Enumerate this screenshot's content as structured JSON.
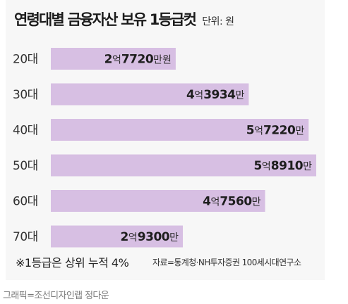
{
  "header": {
    "title": "연령대별 금융자산 보유 1등급컷",
    "unit": "단위: 원"
  },
  "chart_data": {
    "type": "bar",
    "orientation": "horizontal",
    "title": "연령대별 금융자산 보유 1등급컷",
    "categories": [
      "20대",
      "30대",
      "40대",
      "50대",
      "60대",
      "70대"
    ],
    "values": [
      277200000,
      439340000,
      572200000,
      589100000,
      475600000,
      293000000
    ],
    "value_labels": [
      {
        "eok": "2",
        "eok_unit": "억",
        "man": "7720",
        "man_unit": "만원"
      },
      {
        "eok": "4",
        "eok_unit": "억",
        "man": "3934",
        "man_unit": "만"
      },
      {
        "eok": "5",
        "eok_unit": "억",
        "man": "7220",
        "man_unit": "만"
      },
      {
        "eok": "5",
        "eok_unit": "억",
        "man": "8910",
        "man_unit": "만"
      },
      {
        "eok": "4",
        "eok_unit": "억",
        "man": "7560",
        "man_unit": "만"
      },
      {
        "eok": "2",
        "eok_unit": "억",
        "man": "9300",
        "man_unit": "만"
      }
    ],
    "xlim": [
      0,
      589100000
    ],
    "grid": false,
    "bar_color": "#d7bfe3"
  },
  "footnote": "※1등급은 상위 누적 4%",
  "source": "자료=통계청·NH투자증권 100세시대연구소",
  "credit": "그래픽=조선디자인랩 정다운"
}
